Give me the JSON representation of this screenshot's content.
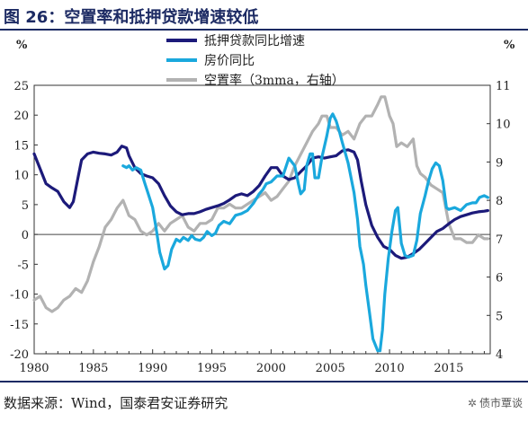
{
  "header": {
    "title": "图 26：空置率和抵押贷款增速较低"
  },
  "footer": {
    "source": "数据来源：Wind，国泰君安证券研究",
    "watermark": "债市覃谈"
  },
  "chart_data": {
    "type": "line",
    "left_unit": "%",
    "right_unit": "%",
    "xlim": [
      1980,
      2018.5
    ],
    "ylim_left": [
      -20,
      25
    ],
    "ylim_right": [
      4,
      11
    ],
    "x_ticks": [
      1980,
      1985,
      1990,
      1995,
      2000,
      2005,
      2010,
      2015
    ],
    "y_ticks_left": [
      25,
      20,
      15,
      10,
      5,
      0,
      -5,
      -10,
      -15,
      -20
    ],
    "y_ticks_right": [
      11,
      10,
      9,
      8,
      7,
      6,
      5,
      4
    ],
    "grid": false,
    "legend_position": "top-center",
    "series": [
      {
        "name": "抵押贷款同比增速",
        "color": "#1c1a7a",
        "axis": "left",
        "points": [
          [
            1980,
            13.5
          ],
          [
            1980.5,
            11
          ],
          [
            1981,
            8.5
          ],
          [
            1981.5,
            7.8
          ],
          [
            1982,
            7.2
          ],
          [
            1982.5,
            5.5
          ],
          [
            1983,
            4.5
          ],
          [
            1983.3,
            5.5
          ],
          [
            1983.7,
            9.5
          ],
          [
            1984,
            12.5
          ],
          [
            1984.5,
            13.5
          ],
          [
            1985,
            13.8
          ],
          [
            1985.5,
            13.6
          ],
          [
            1986,
            13.5
          ],
          [
            1986.5,
            13.3
          ],
          [
            1987,
            13.8
          ],
          [
            1987.4,
            14.8
          ],
          [
            1987.8,
            14.5
          ],
          [
            1988,
            13.2
          ],
          [
            1988.5,
            11.2
          ],
          [
            1989,
            10.2
          ],
          [
            1989.5,
            9.8
          ],
          [
            1990,
            9.5
          ],
          [
            1990.5,
            8.5
          ],
          [
            1991,
            6.5
          ],
          [
            1991.5,
            4.8
          ],
          [
            1992,
            3.8
          ],
          [
            1992.5,
            3.3
          ],
          [
            1993,
            3.5
          ],
          [
            1993.5,
            3.5
          ],
          [
            1994,
            3.8
          ],
          [
            1994.5,
            4.2
          ],
          [
            1995,
            4.5
          ],
          [
            1995.5,
            4.8
          ],
          [
            1996,
            5.2
          ],
          [
            1996.5,
            5.8
          ],
          [
            1997,
            6.5
          ],
          [
            1997.5,
            6.8
          ],
          [
            1998,
            6.5
          ],
          [
            1998.5,
            7.2
          ],
          [
            1999,
            8.2
          ],
          [
            1999.5,
            9.8
          ],
          [
            2000,
            11.2
          ],
          [
            2000.5,
            11.2
          ],
          [
            2001,
            9.8
          ],
          [
            2001.5,
            9.2
          ],
          [
            2002,
            9.5
          ],
          [
            2002.5,
            10.5
          ],
          [
            2003,
            11.5
          ],
          [
            2003.5,
            12.8
          ],
          [
            2004,
            13.0
          ],
          [
            2004.5,
            12.8
          ],
          [
            2005,
            13.0
          ],
          [
            2005.5,
            13.2
          ],
          [
            2006,
            14.0
          ],
          [
            2006.5,
            14.2
          ],
          [
            2007,
            13.8
          ],
          [
            2007.3,
            12.5
          ],
          [
            2007.6,
            9
          ],
          [
            2008,
            5
          ],
          [
            2008.5,
            1.5
          ],
          [
            2009,
            -0.5
          ],
          [
            2009.5,
            -2
          ],
          [
            2010,
            -2.5
          ],
          [
            2010.5,
            -3.5
          ],
          [
            2011,
            -4
          ],
          [
            2011.5,
            -3.8
          ],
          [
            2012,
            -3.2
          ],
          [
            2012.5,
            -2.5
          ],
          [
            2013,
            -1.5
          ],
          [
            2013.5,
            -0.5
          ],
          [
            2014,
            0.5
          ],
          [
            2014.5,
            1.0
          ],
          [
            2015,
            1.8
          ],
          [
            2015.5,
            2.5
          ],
          [
            2016,
            3.0
          ],
          [
            2016.5,
            3.3
          ],
          [
            2017,
            3.6
          ],
          [
            2017.5,
            3.8
          ],
          [
            2018,
            3.9
          ],
          [
            2018.3,
            4.0
          ]
        ]
      },
      {
        "name": "房价同比",
        "color": "#1aa8dd",
        "axis": "left",
        "points": [
          [
            1987.5,
            11.5
          ],
          [
            1987.8,
            11.2
          ],
          [
            1988,
            11.5
          ],
          [
            1988.3,
            10.8
          ],
          [
            1988.6,
            11.2
          ],
          [
            1989,
            10.8
          ],
          [
            1989.3,
            8.8
          ],
          [
            1989.6,
            7.0
          ],
          [
            1990,
            4.5
          ],
          [
            1990.3,
            1.0
          ],
          [
            1990.6,
            -3.0
          ],
          [
            1991,
            -5.8
          ],
          [
            1991.3,
            -5.2
          ],
          [
            1991.6,
            -2.5
          ],
          [
            1992,
            -0.8
          ],
          [
            1992.3,
            -1.2
          ],
          [
            1992.6,
            -0.5
          ],
          [
            1993,
            -1.0
          ],
          [
            1993.3,
            -0.2
          ],
          [
            1993.6,
            -0.8
          ],
          [
            1994,
            -1.0
          ],
          [
            1994.3,
            -0.5
          ],
          [
            1994.6,
            0.5
          ],
          [
            1995,
            -0.2
          ],
          [
            1995.3,
            0.2
          ],
          [
            1995.6,
            1.5
          ],
          [
            1996,
            2.2
          ],
          [
            1996.5,
            1.8
          ],
          [
            1997,
            3.2
          ],
          [
            1997.5,
            3.5
          ],
          [
            1998,
            4.0
          ],
          [
            1998.5,
            5.2
          ],
          [
            1999,
            6.8
          ],
          [
            1999.3,
            7.5
          ],
          [
            1999.6,
            8.5
          ],
          [
            2000,
            8.8
          ],
          [
            2000.5,
            9.8
          ],
          [
            2001,
            9.8
          ],
          [
            2001.5,
            12.8
          ],
          [
            2002,
            11.5
          ],
          [
            2002.3,
            8.5
          ],
          [
            2002.5,
            6.8
          ],
          [
            2002.8,
            7.5
          ],
          [
            2003,
            11.5
          ],
          [
            2003.3,
            13.5
          ],
          [
            2003.5,
            13.5
          ],
          [
            2003.7,
            9.5
          ],
          [
            2004,
            9.5
          ],
          [
            2004.3,
            13.0
          ],
          [
            2004.7,
            16.5
          ],
          [
            2005,
            19.5
          ],
          [
            2005.2,
            20.2
          ],
          [
            2005.5,
            19.0
          ],
          [
            2005.8,
            17.0
          ],
          [
            2006,
            15.5
          ],
          [
            2006.5,
            12.0
          ],
          [
            2007,
            7.0
          ],
          [
            2007.3,
            2.5
          ],
          [
            2007.5,
            -2.0
          ],
          [
            2007.8,
            -5.0
          ],
          [
            2008,
            -8.5
          ],
          [
            2008.3,
            -13.0
          ],
          [
            2008.6,
            -17.5
          ],
          [
            2009,
            -19.5
          ],
          [
            2009.2,
            -19.5
          ],
          [
            2009.4,
            -16.0
          ],
          [
            2009.6,
            -10.0
          ],
          [
            2009.9,
            -4.0
          ],
          [
            2010.2,
            0.5
          ],
          [
            2010.5,
            4.0
          ],
          [
            2010.7,
            4.5
          ],
          [
            2011,
            -1.5
          ],
          [
            2011.3,
            -3.5
          ],
          [
            2011.6,
            -3.8
          ],
          [
            2012,
            -3.5
          ],
          [
            2012.3,
            -1.0
          ],
          [
            2012.6,
            3.5
          ],
          [
            2013,
            6.5
          ],
          [
            2013.3,
            9.0
          ],
          [
            2013.6,
            11.0
          ],
          [
            2013.9,
            12.0
          ],
          [
            2014.2,
            11.5
          ],
          [
            2014.5,
            9.0
          ],
          [
            2014.8,
            4.5
          ],
          [
            2015,
            4.2
          ],
          [
            2015.5,
            4.5
          ],
          [
            2016,
            4.0
          ],
          [
            2016.5,
            5.0
          ],
          [
            2017,
            5.3
          ],
          [
            2017.3,
            5.3
          ],
          [
            2017.6,
            6.2
          ],
          [
            2018,
            6.5
          ],
          [
            2018.3,
            6.2
          ]
        ]
      },
      {
        "name": "空置率（3mma，右轴）",
        "color": "#b2b2b2",
        "axis": "right",
        "points": [
          [
            1980,
            5.4
          ],
          [
            1980.5,
            5.5
          ],
          [
            1981,
            5.2
          ],
          [
            1981.5,
            5.1
          ],
          [
            1982,
            5.2
          ],
          [
            1982.5,
            5.4
          ],
          [
            1983,
            5.5
          ],
          [
            1983.5,
            5.7
          ],
          [
            1984,
            5.6
          ],
          [
            1984.5,
            5.9
          ],
          [
            1985,
            6.4
          ],
          [
            1985.5,
            6.8
          ],
          [
            1986,
            7.3
          ],
          [
            1986.5,
            7.5
          ],
          [
            1987,
            7.8
          ],
          [
            1987.5,
            8.0
          ],
          [
            1988,
            7.6
          ],
          [
            1988.5,
            7.5
          ],
          [
            1989,
            7.2
          ],
          [
            1989.5,
            7.1
          ],
          [
            1990,
            7.2
          ],
          [
            1990.5,
            7.4
          ],
          [
            1991,
            7.2
          ],
          [
            1991.5,
            7.4
          ],
          [
            1992,
            7.5
          ],
          [
            1992.5,
            7.6
          ],
          [
            1993,
            7.3
          ],
          [
            1993.5,
            7.2
          ],
          [
            1994,
            7.4
          ],
          [
            1994.5,
            7.4
          ],
          [
            1995,
            7.5
          ],
          [
            1995.5,
            7.8
          ],
          [
            1996,
            7.8
          ],
          [
            1996.5,
            7.9
          ],
          [
            1997,
            7.8
          ],
          [
            1997.5,
            7.8
          ],
          [
            1998,
            7.9
          ],
          [
            1998.5,
            8.0
          ],
          [
            1999,
            8.1
          ],
          [
            1999.5,
            8.2
          ],
          [
            2000,
            8.0
          ],
          [
            2000.5,
            8.1
          ],
          [
            2001,
            8.3
          ],
          [
            2001.5,
            8.5
          ],
          [
            2002,
            8.9
          ],
          [
            2002.5,
            9.2
          ],
          [
            2003,
            9.5
          ],
          [
            2003.5,
            9.8
          ],
          [
            2004,
            10.0
          ],
          [
            2004.3,
            10.2
          ],
          [
            2004.7,
            10.2
          ],
          [
            2005,
            9.9
          ],
          [
            2005.5,
            9.9
          ],
          [
            2006,
            9.7
          ],
          [
            2006.5,
            9.8
          ],
          [
            2007,
            9.6
          ],
          [
            2007.5,
            10.0
          ],
          [
            2008,
            10.2
          ],
          [
            2008.5,
            10.2
          ],
          [
            2009,
            10.5
          ],
          [
            2009.3,
            10.7
          ],
          [
            2009.6,
            10.7
          ],
          [
            2010,
            10.2
          ],
          [
            2010.3,
            10.0
          ],
          [
            2010.6,
            9.4
          ],
          [
            2011,
            9.5
          ],
          [
            2011.5,
            9.4
          ],
          [
            2012,
            9.6
          ],
          [
            2012.3,
            8.9
          ],
          [
            2012.6,
            8.7
          ],
          [
            2013,
            8.6
          ],
          [
            2013.5,
            8.4
          ],
          [
            2014,
            8.3
          ],
          [
            2014.5,
            8.2
          ],
          [
            2015,
            7.4
          ],
          [
            2015.5,
            7.0
          ],
          [
            2016,
            7.0
          ],
          [
            2016.5,
            6.9
          ],
          [
            2017,
            6.9
          ],
          [
            2017.5,
            7.1
          ],
          [
            2018,
            7.0
          ],
          [
            2018.3,
            7.0
          ]
        ]
      }
    ]
  }
}
